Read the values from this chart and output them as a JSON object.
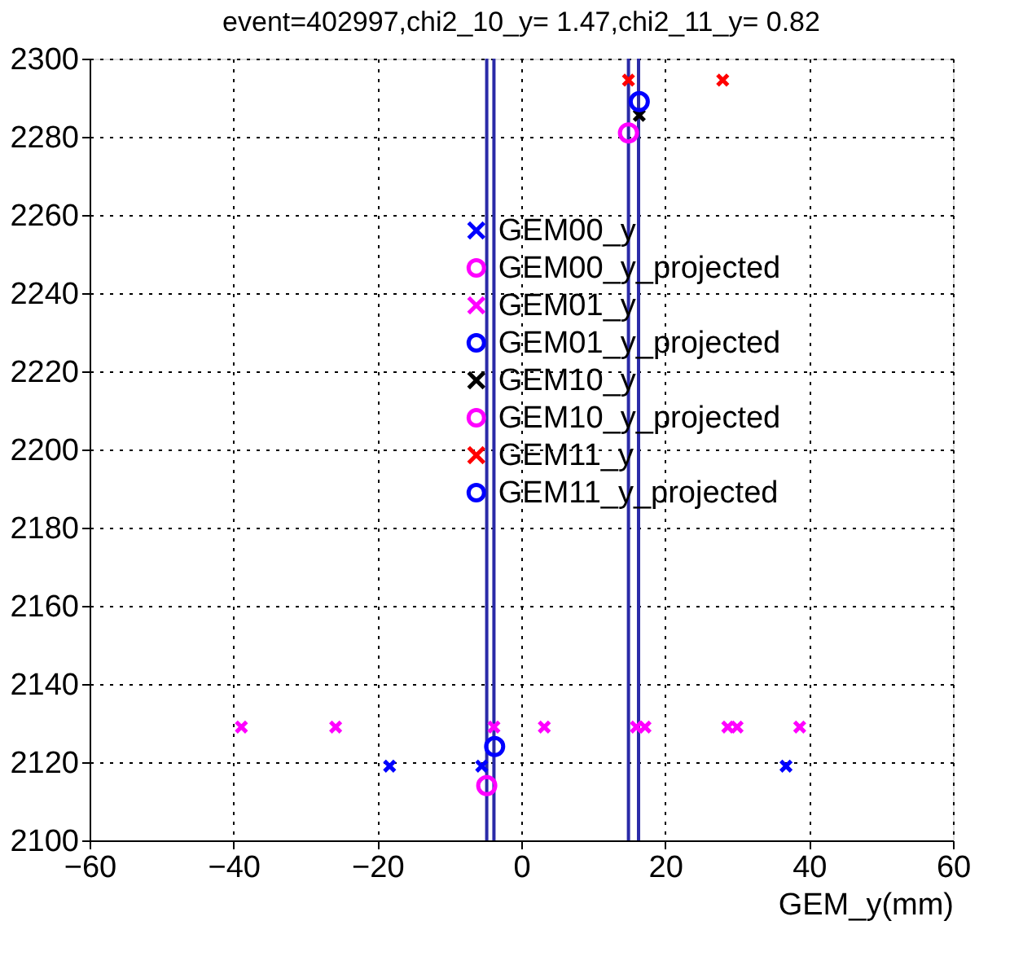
{
  "chart_data": {
    "type": "scatter",
    "title": "event=402997,chi2_10_y= 1.47,chi2_11_y= 0.82",
    "xlabel": "GEM_y(mm)",
    "xlim": [
      -60,
      60
    ],
    "xticks": [
      -60,
      -40,
      -20,
      0,
      20,
      40,
      60
    ],
    "ylim": [
      2100,
      2300
    ],
    "yticks": [
      2100,
      2120,
      2140,
      2160,
      2180,
      2200,
      2220,
      2240,
      2260,
      2280,
      2300
    ],
    "grid": true,
    "legend": "right",
    "series": [
      {
        "name": "GEM00_y",
        "color": "#0000ff",
        "marker": "cross",
        "x": [
          -18.3,
          -5.5,
          36.8
        ],
        "values": [
          2119,
          2119,
          2119
        ]
      },
      {
        "name": "GEM00_y_projected",
        "color": "#ff00ff",
        "marker": "circle",
        "x": [
          -4.8
        ],
        "values": [
          2114
        ]
      },
      {
        "name": "GEM01_y",
        "color": "#ff00ff",
        "marker": "cross",
        "x": [
          -38.9,
          -25.8,
          -3.8,
          3.2,
          16.0,
          17.2,
          28.7,
          30.0,
          38.7
        ],
        "values": [
          2129,
          2129,
          2129,
          2129,
          2129,
          2129,
          2129,
          2129,
          2129
        ]
      },
      {
        "name": "GEM01_y_projected",
        "color": "#0000ff",
        "marker": "circle",
        "x": [
          -3.7
        ],
        "values": [
          2124
        ]
      },
      {
        "name": "GEM10_y",
        "color": "#000000",
        "marker": "cross",
        "x": [
          16.4
        ],
        "values": [
          2285.5
        ]
      },
      {
        "name": "GEM10_y_projected",
        "color": "#ff00ff",
        "marker": "circle",
        "x": [
          14.9
        ],
        "values": [
          2281
        ]
      },
      {
        "name": "GEM11_y",
        "color": "#ff0000",
        "marker": "cross",
        "x": [
          14.9,
          28.0
        ],
        "values": [
          2294.5,
          2294.5
        ]
      },
      {
        "name": "GEM11_y_projected",
        "color": "#0000ff",
        "marker": "circle",
        "x": [
          16.4
        ],
        "values": [
          2289
        ]
      }
    ],
    "ref_lines": [
      {
        "axis": "x",
        "value": -4.8,
        "color": "#2a2aa8"
      },
      {
        "axis": "x",
        "value": -3.8,
        "color": "#2a2aa8"
      },
      {
        "axis": "x",
        "value": 14.9,
        "color": "#2a2aa8"
      },
      {
        "axis": "x",
        "value": 16.3,
        "color": "#2a2aa8"
      }
    ]
  }
}
